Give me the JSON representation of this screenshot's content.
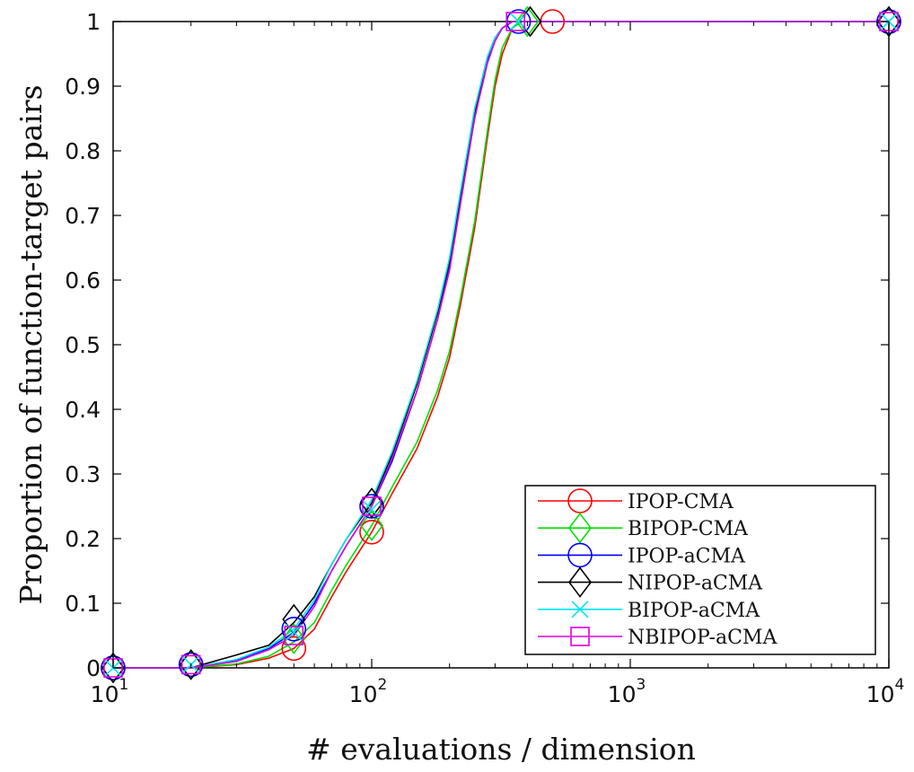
{
  "chart_data": {
    "type": "line",
    "xlabel": "# evaluations / dimension",
    "ylabel": "Proportion of function-target pairs",
    "x_scale": "log",
    "xlim": [
      10,
      10000
    ],
    "ylim": [
      0,
      1
    ],
    "x_ticks": [
      {
        "value": 10,
        "base": "10",
        "exp": "1"
      },
      {
        "value": 100,
        "base": "10",
        "exp": "2"
      },
      {
        "value": 1000,
        "base": "10",
        "exp": "3"
      },
      {
        "value": 10000,
        "base": "10",
        "exp": "4"
      }
    ],
    "y_ticks": [
      {
        "value": 0,
        "label": "0"
      },
      {
        "value": 0.1,
        "label": "0.1"
      },
      {
        "value": 0.2,
        "label": "0.2"
      },
      {
        "value": 0.3,
        "label": "0.3"
      },
      {
        "value": 0.4,
        "label": "0.4"
      },
      {
        "value": 0.5,
        "label": "0.5"
      },
      {
        "value": 0.6,
        "label": "0.6"
      },
      {
        "value": 0.7,
        "label": "0.7"
      },
      {
        "value": 0.8,
        "label": "0.8"
      },
      {
        "value": 0.9,
        "label": "0.9"
      },
      {
        "value": 1,
        "label": "1"
      }
    ],
    "grid": false,
    "legend_position": "bottom-right",
    "series": [
      {
        "name": "IPOP-CMA",
        "color": "#ff0000",
        "marker": "circle",
        "x": [
          10,
          20,
          30,
          40,
          50,
          60,
          70,
          80,
          100,
          120,
          150,
          180,
          200,
          220,
          250,
          280,
          300,
          320,
          350,
          380,
          400,
          500,
          10000
        ],
        "y": [
          0,
          0,
          0.005,
          0.015,
          0.03,
          0.06,
          0.11,
          0.15,
          0.21,
          0.27,
          0.34,
          0.42,
          0.48,
          0.56,
          0.68,
          0.82,
          0.9,
          0.95,
          0.99,
          1,
          1,
          1,
          1
        ],
        "markers": [
          [
            10,
            0
          ],
          [
            20,
            0.005
          ],
          [
            50,
            0.03
          ],
          [
            100,
            0.21
          ],
          [
            500,
            1
          ],
          [
            10000,
            1
          ]
        ]
      },
      {
        "name": "BIPOP-CMA",
        "color": "#00e000",
        "marker": "diamond",
        "x": [
          10,
          20,
          30,
          40,
          50,
          60,
          70,
          80,
          100,
          120,
          150,
          180,
          200,
          220,
          250,
          280,
          300,
          320,
          350,
          380,
          400,
          10000
        ],
        "y": [
          0,
          0,
          0.006,
          0.018,
          0.04,
          0.07,
          0.12,
          0.16,
          0.22,
          0.28,
          0.35,
          0.43,
          0.49,
          0.57,
          0.69,
          0.83,
          0.91,
          0.96,
          0.99,
          1,
          1,
          1
        ],
        "markers": [
          [
            10,
            0
          ],
          [
            20,
            0.005
          ],
          [
            50,
            0.045
          ],
          [
            100,
            0.22
          ],
          [
            400,
            1
          ],
          [
            10000,
            1
          ]
        ]
      },
      {
        "name": "IPOP-aCMA",
        "color": "#0000ff",
        "marker": "circle",
        "x": [
          10,
          20,
          30,
          40,
          50,
          60,
          70,
          80,
          100,
          120,
          150,
          180,
          200,
          220,
          250,
          280,
          300,
          320,
          350,
          380,
          10000
        ],
        "y": [
          0,
          0,
          0.012,
          0.03,
          0.055,
          0.1,
          0.15,
          0.19,
          0.25,
          0.32,
          0.43,
          0.54,
          0.62,
          0.72,
          0.85,
          0.94,
          0.97,
          0.99,
          1,
          1,
          1
        ],
        "markers": [
          [
            10,
            0
          ],
          [
            20,
            0.005
          ],
          [
            50,
            0.06
          ],
          [
            100,
            0.25
          ],
          [
            370,
            1
          ],
          [
            10000,
            1
          ]
        ]
      },
      {
        "name": "NIPOP-aCMA",
        "color": "#000000",
        "marker": "diamond",
        "x": [
          10,
          20,
          30,
          40,
          50,
          60,
          70,
          80,
          100,
          120,
          150,
          180,
          200,
          220,
          250,
          280,
          300,
          320,
          350,
          380,
          400,
          10000
        ],
        "y": [
          0,
          0,
          0.02,
          0.035,
          0.07,
          0.11,
          0.16,
          0.2,
          0.255,
          0.33,
          0.44,
          0.55,
          0.63,
          0.73,
          0.86,
          0.945,
          0.975,
          0.99,
          1,
          1,
          1,
          1
        ],
        "markers": [
          [
            10,
            0
          ],
          [
            20,
            0.005
          ],
          [
            50,
            0.075
          ],
          [
            100,
            0.255
          ],
          [
            410,
            1
          ],
          [
            10000,
            1
          ]
        ]
      },
      {
        "name": "BIPOP-aCMA",
        "color": "#00e5ee",
        "marker": "x",
        "x": [
          10,
          20,
          30,
          40,
          50,
          60,
          70,
          80,
          100,
          120,
          150,
          180,
          200,
          220,
          250,
          280,
          300,
          320,
          350,
          380,
          10000
        ],
        "y": [
          0,
          0,
          0.013,
          0.032,
          0.06,
          0.105,
          0.16,
          0.2,
          0.26,
          0.335,
          0.445,
          0.555,
          0.635,
          0.735,
          0.865,
          0.945,
          0.975,
          0.99,
          1,
          1,
          1
        ],
        "markers": [
          [
            10,
            0
          ],
          [
            20,
            0.005
          ],
          [
            50,
            0.055
          ],
          [
            100,
            0.245
          ],
          [
            370,
            1
          ],
          [
            10000,
            1
          ]
        ]
      },
      {
        "name": "NBIPOP-aCMA",
        "color": "#dd00dd",
        "marker": "square",
        "x": [
          10,
          20,
          30,
          40,
          50,
          60,
          70,
          80,
          100,
          120,
          150,
          180,
          200,
          220,
          250,
          280,
          300,
          320,
          350,
          380,
          10000
        ],
        "y": [
          0,
          0,
          0.01,
          0.028,
          0.05,
          0.095,
          0.15,
          0.19,
          0.25,
          0.325,
          0.43,
          0.54,
          0.615,
          0.715,
          0.85,
          0.935,
          0.97,
          0.99,
          1,
          1,
          1
        ],
        "markers": [
          [
            10,
            0
          ],
          [
            20,
            0.005
          ],
          [
            50,
            0.05
          ],
          [
            100,
            0.25
          ],
          [
            360,
            1
          ],
          [
            10000,
            1
          ]
        ]
      }
    ]
  }
}
